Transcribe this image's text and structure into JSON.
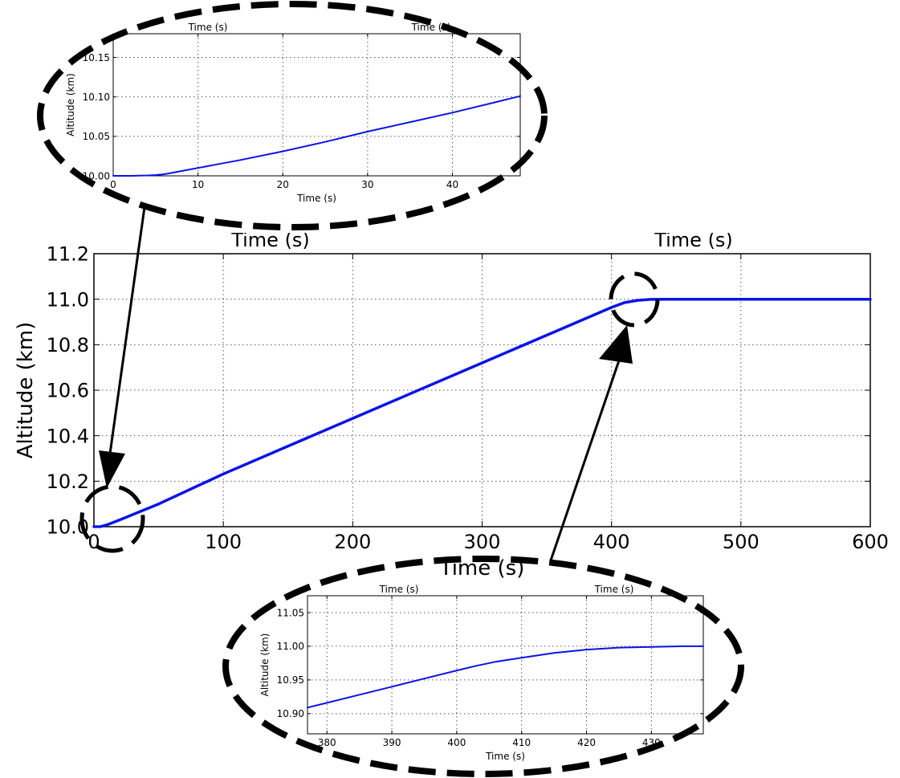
{
  "chart_data": [
    {
      "id": "main",
      "type": "line",
      "xlabel": "Time (s)",
      "ylabel": "Altitude (km)",
      "top_labels": [
        "Time (s)",
        "Time (s)"
      ],
      "xlim": [
        0,
        600
      ],
      "ylim": [
        10.0,
        11.2
      ],
      "xticks": [
        0,
        100,
        200,
        300,
        400,
        500,
        600
      ],
      "yticks": [
        10.0,
        10.2,
        10.4,
        10.6,
        10.8,
        11.0,
        11.2
      ],
      "xtick_labels": [
        "0",
        "100",
        "200",
        "300",
        "400",
        "500",
        "600"
      ],
      "ytick_labels": [
        "10.0",
        "10.2",
        "10.4",
        "10.6",
        "10.8",
        "11.0",
        "11.2"
      ],
      "grid": true,
      "series": [
        {
          "color": "#0a14e6",
          "x": [
            0,
            5,
            10,
            20,
            50,
            100,
            200,
            300,
            400,
            410,
            420,
            430,
            440,
            500,
            600
          ],
          "y": [
            10.0,
            10.0005,
            10.008,
            10.03,
            10.1,
            10.232,
            10.476,
            10.72,
            10.964,
            10.985,
            10.995,
            10.999,
            11.0,
            11.0,
            11.0
          ]
        }
      ]
    },
    {
      "id": "zoom_start",
      "type": "line",
      "xlabel": "Time (s)",
      "ylabel": "Altitude (km)",
      "top_labels": [
        "Time (s)",
        "Time (s)"
      ],
      "xlim": [
        0,
        48
      ],
      "ylim": [
        10.0,
        10.18
      ],
      "xticks": [
        0,
        10,
        20,
        30,
        40
      ],
      "yticks": [
        10.0,
        10.05,
        10.1,
        10.15
      ],
      "xtick_labels": [
        "0",
        "10",
        "20",
        "30",
        "40"
      ],
      "ytick_labels": [
        "10.00",
        "10.05",
        "10.10",
        "10.15"
      ],
      "grid": true,
      "series": [
        {
          "color": "#0a14e6",
          "x": [
            0,
            2,
            4,
            5,
            6,
            7,
            8,
            9,
            10,
            12,
            15,
            20,
            25,
            30,
            35,
            40,
            45,
            48
          ],
          "y": [
            10.0,
            10.0,
            10.0005,
            10.001,
            10.002,
            10.004,
            10.006,
            10.008,
            10.01,
            10.014,
            10.02,
            10.031,
            10.043,
            10.056,
            10.068,
            10.08,
            10.093,
            10.101
          ]
        }
      ]
    },
    {
      "id": "zoom_end",
      "type": "line",
      "xlabel": "Time (s)",
      "ylabel": "Altitude (km)",
      "top_labels": [
        "Time (s)",
        "Time (s)"
      ],
      "xlim": [
        377,
        438
      ],
      "ylim": [
        10.87,
        11.075
      ],
      "xticks": [
        380,
        390,
        400,
        410,
        420,
        430
      ],
      "yticks": [
        10.9,
        10.95,
        11.0,
        11.05
      ],
      "xtick_labels": [
        "380",
        "390",
        "400",
        "410",
        "420",
        "430"
      ],
      "ytick_labels": [
        "10.90",
        "10.95",
        "11.00",
        "11.05"
      ],
      "grid": true,
      "series": [
        {
          "color": "#0a14e6",
          "x": [
            377,
            380,
            385,
            390,
            395,
            400,
            403,
            406,
            410,
            415,
            420,
            425,
            430,
            435,
            438
          ],
          "y": [
            10.909,
            10.916,
            10.928,
            10.94,
            10.952,
            10.964,
            10.971,
            10.977,
            10.983,
            10.99,
            10.995,
            10.998,
            10.999,
            11.0,
            11.0
          ]
        }
      ]
    }
  ]
}
